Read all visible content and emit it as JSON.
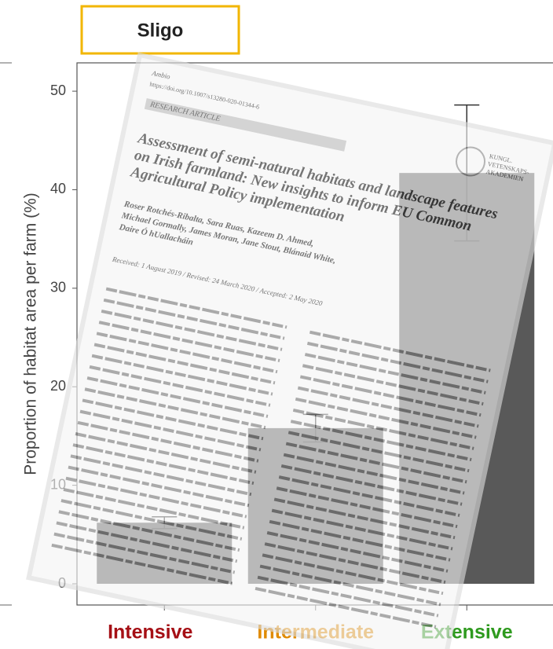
{
  "chart_data": {
    "type": "bar",
    "strip_label": "Sligo",
    "y_label": "Proportion of habitat area per farm (%)",
    "categories": [
      "Intensive",
      "Intermediate",
      "Extensive"
    ],
    "category_colors": [
      "#a50f15",
      "#e08a00",
      "#2e9a1e"
    ],
    "values": [
      6.2,
      15.8,
      41.7
    ],
    "errors": [
      0.6,
      1.4,
      6.9
    ],
    "color": "#595959",
    "ylim": [
      0,
      52
    ],
    "yticks": [
      0,
      10,
      20,
      30,
      40,
      50
    ]
  },
  "overlay": {
    "journal": "Ambio",
    "doi": "https://doi.org/10.1007/s13280-020-01344-6",
    "section": "RESEARCH ARTICLE",
    "title_lines": [
      "Assessment of semi-natural habitats and landscape features",
      "on Irish farmland: New insights to inform EU Common",
      "Agricultural Policy implementation"
    ],
    "author_lines": [
      "Roser Rotchés-Ribalta, Sara Ruas, Kazeem D. Ahmed,",
      "Michael Gormally, James Moran, Jane Stout, Blánaid White,",
      "Daire Ó hUallacháin"
    ],
    "received": "Received: 1 August 2019 / Revised: 24 March 2020 / Accepted: 2 May 2020",
    "publisher_lines": [
      "KUNGL.",
      "VETENSKAPS-",
      "AKADEMIEN"
    ]
  }
}
